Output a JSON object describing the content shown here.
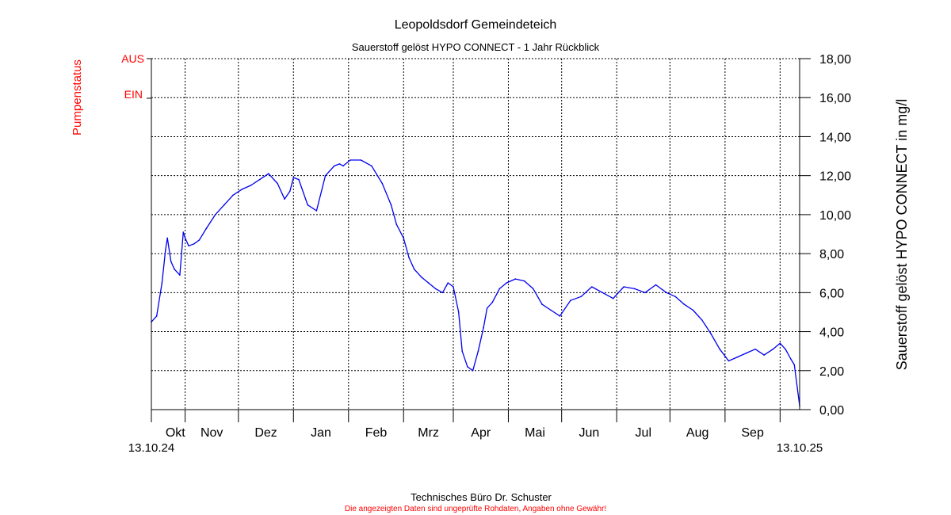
{
  "chart_data": {
    "type": "line",
    "title": "Leopoldsdorf Gemeindeteich",
    "subtitle": "Sauerstoff gelöst  HYPO CONNECT - 1 Jahr Rückblick",
    "ylabel": "Sauerstoff gelöst  HYPO CONNECT in mg/l",
    "ylim": [
      0,
      18
    ],
    "yticks": [
      "0,00",
      "2,00",
      "4,00",
      "6,00",
      "8,00",
      "10,00",
      "12,00",
      "14,00",
      "16,00",
      "18,00"
    ],
    "ytick_values": [
      0,
      2,
      4,
      6,
      8,
      10,
      12,
      14,
      16,
      18
    ],
    "x_start_label": "13.10.24",
    "x_end_label": "13.10.25",
    "xlim_days": [
      0,
      365
    ],
    "month_labels": [
      "Okt",
      "Nov",
      "Dez",
      "Jan",
      "Feb",
      "Mrz",
      "Apr",
      "Mai",
      "Jun",
      "Jul",
      "Aug",
      "Sep"
    ],
    "month_start_days": [
      0,
      19,
      49,
      80,
      111,
      142,
      170,
      201,
      231,
      262,
      292,
      323,
      354
    ],
    "grid": true,
    "series": [
      {
        "name": "Sauerstoff gelöst HYPO CONNECT",
        "color": "#0000ee",
        "x": [
          0,
          3,
          6,
          8,
          9,
          11,
          13,
          16,
          18,
          19,
          21,
          24,
          27,
          31,
          36,
          41,
          46,
          51,
          56,
          61,
          66,
          71,
          75,
          78,
          80,
          83,
          88,
          93,
          98,
          103,
          106,
          108,
          112,
          118,
          124,
          130,
          135,
          138,
          142,
          145,
          148,
          152,
          156,
          160,
          164,
          167,
          170,
          173,
          175,
          178,
          181,
          184,
          187,
          189,
          192,
          196,
          200,
          205,
          210,
          215,
          220,
          225,
          230,
          236,
          242,
          248,
          254,
          260,
          266,
          272,
          278,
          284,
          290,
          295,
          300,
          305,
          310,
          315,
          320,
          325,
          330,
          335,
          340,
          345,
          350,
          354,
          357,
          360,
          362,
          365
        ],
        "y": [
          4.5,
          4.8,
          6.5,
          8.2,
          8.8,
          7.6,
          7.2,
          6.9,
          9.1,
          8.8,
          8.4,
          8.5,
          8.7,
          9.3,
          10.0,
          10.5,
          11.0,
          11.3,
          11.5,
          11.8,
          12.1,
          11.6,
          10.8,
          11.2,
          11.9,
          11.8,
          10.5,
          10.2,
          12.0,
          12.5,
          12.6,
          12.5,
          12.8,
          12.8,
          12.5,
          11.6,
          10.5,
          9.5,
          8.8,
          7.8,
          7.2,
          6.8,
          6.5,
          6.2,
          6.0,
          6.5,
          6.3,
          5.0,
          3.0,
          2.2,
          2.0,
          3.0,
          4.2,
          5.2,
          5.5,
          6.2,
          6.5,
          6.7,
          6.6,
          6.2,
          5.4,
          5.1,
          4.8,
          5.6,
          5.8,
          6.3,
          6.0,
          5.7,
          6.3,
          6.2,
          6.0,
          6.4,
          6.0,
          5.8,
          5.4,
          5.1,
          4.6,
          3.9,
          3.1,
          2.5,
          2.7,
          2.9,
          3.1,
          2.8,
          3.1,
          3.4,
          3.1,
          2.6,
          2.3,
          0.2
        ]
      }
    ],
    "pump_status": {
      "label": "Pumpenstatus",
      "off_label": "AUS",
      "on_label": "EIN",
      "color": "#ff0000"
    }
  },
  "footer": {
    "company": "Technisches Büro Dr. Schuster",
    "disclaimer": "Die angezeigten Daten sind ungeprüfte Rohdaten, Angaben ohne Gewähr!"
  }
}
